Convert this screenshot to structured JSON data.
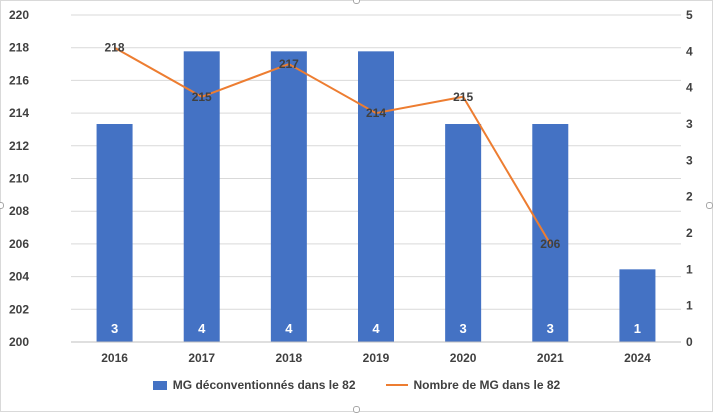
{
  "chart_data": {
    "type": "bar",
    "categories": [
      "2016",
      "2017",
      "2018",
      "2019",
      "2020",
      "2021",
      "2024"
    ],
    "series": [
      {
        "name": "MG déconventionnés dans le 82",
        "type": "bar",
        "axis": "right",
        "color": "#4472c4",
        "values": [
          3,
          4,
          4,
          4,
          3,
          3,
          1
        ]
      },
      {
        "name": "Nombre de MG dans le 82",
        "type": "line",
        "axis": "left",
        "color": "#ed7d31",
        "values": [
          218,
          215,
          217,
          214,
          215,
          206,
          null
        ]
      }
    ],
    "y_left": {
      "ylim": [
        200,
        220
      ],
      "ticks": [
        "200",
        "202",
        "204",
        "206",
        "208",
        "210",
        "212",
        "214",
        "216",
        "218",
        "220"
      ]
    },
    "y_right": {
      "ylim": [
        0,
        4.5
      ],
      "ticks": [
        "0",
        "1",
        "1",
        "2",
        "2",
        "3",
        "3",
        "4",
        "4",
        "5"
      ]
    },
    "grid": true,
    "legend": "bottom",
    "title": "",
    "xlabel": "",
    "ylabel": ""
  }
}
